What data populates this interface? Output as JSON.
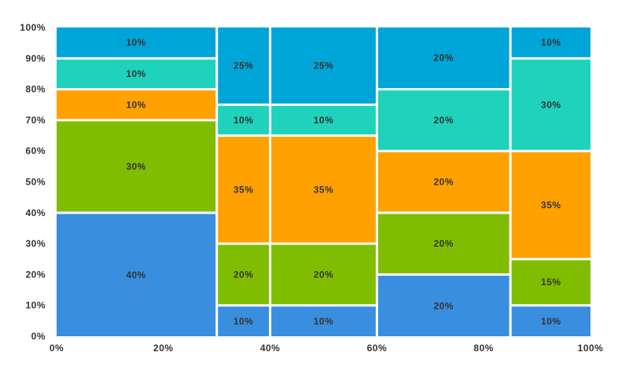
{
  "chart_data": {
    "type": "mosaic",
    "title": "",
    "xlabel": "",
    "ylabel": "",
    "xlim": [
      0,
      100
    ],
    "ylim": [
      0,
      100
    ],
    "x_ticks": [
      "0%",
      "20%",
      "40%",
      "60%",
      "80%",
      "100%"
    ],
    "y_ticks": [
      "0%",
      "10%",
      "20%",
      "30%",
      "40%",
      "50%",
      "60%",
      "70%",
      "80%",
      "90%",
      "100%"
    ],
    "columns": [
      {
        "width": 30,
        "segments": [
          {
            "value": 40,
            "label": "40%",
            "color": "#3a8ee0"
          },
          {
            "value": 30,
            "label": "30%",
            "color": "#80bd00"
          },
          {
            "value": 10,
            "label": "10%",
            "color": "#ffa100"
          },
          {
            "value": 10,
            "label": "10%",
            "color": "#1ed2bc"
          },
          {
            "value": 10,
            "label": "10%",
            "color": "#00a5d8"
          }
        ]
      },
      {
        "width": 10,
        "segments": [
          {
            "value": 10,
            "label": "10%",
            "color": "#3a8ee0"
          },
          {
            "value": 20,
            "label": "20%",
            "color": "#80bd00"
          },
          {
            "value": 35,
            "label": "35%",
            "color": "#ffa100"
          },
          {
            "value": 10,
            "label": "10%",
            "color": "#1ed2bc"
          },
          {
            "value": 25,
            "label": "25%",
            "color": "#00a5d8"
          }
        ]
      },
      {
        "width": 20,
        "segments": [
          {
            "value": 10,
            "label": "10%",
            "color": "#3a8ee0"
          },
          {
            "value": 20,
            "label": "20%",
            "color": "#80bd00"
          },
          {
            "value": 35,
            "label": "35%",
            "color": "#ffa100"
          },
          {
            "value": 10,
            "label": "10%",
            "color": "#1ed2bc"
          },
          {
            "value": 25,
            "label": "25%",
            "color": "#00a5d8"
          }
        ]
      },
      {
        "width": 25,
        "segments": [
          {
            "value": 20,
            "label": "20%",
            "color": "#3a8ee0"
          },
          {
            "value": 20,
            "label": "20%",
            "color": "#80bd00"
          },
          {
            "value": 20,
            "label": "20%",
            "color": "#ffa100"
          },
          {
            "value": 20,
            "label": "20%",
            "color": "#1ed2bc"
          },
          {
            "value": 20,
            "label": "20%",
            "color": "#00a5d8"
          }
        ]
      },
      {
        "width": 15,
        "segments": [
          {
            "value": 10,
            "label": "10%",
            "color": "#3a8ee0"
          },
          {
            "value": 15,
            "label": "15%",
            "color": "#80bd00"
          },
          {
            "value": 35,
            "label": "35%",
            "color": "#ffa100"
          },
          {
            "value": 30,
            "label": "30%",
            "color": "#1ed2bc"
          },
          {
            "value": 10,
            "label": "10%",
            "color": "#00a5d8"
          }
        ]
      }
    ]
  }
}
